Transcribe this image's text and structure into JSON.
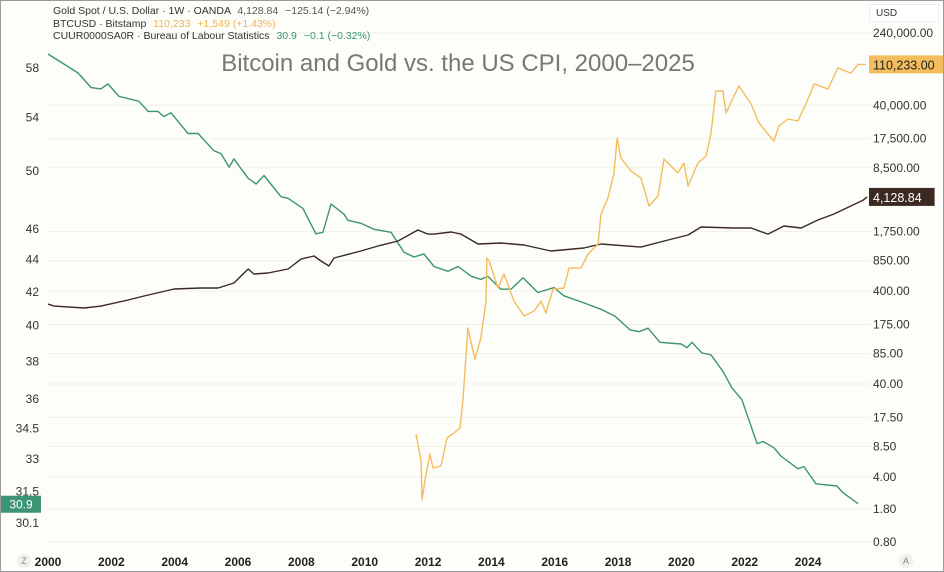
{
  "legend": {
    "gold": {
      "name": "Gold Spot / U.S. Dollar · 1W · OANDA",
      "value": "4,128.84",
      "change": "−125.14 (−2.94%)"
    },
    "btc": {
      "name": "BTCUSD · Bitstamp",
      "value": "110,233",
      "change": "+1,549 (+1.43%)"
    },
    "cpi": {
      "name": "CUUR0000SA0R · Bureau of Labour Statistics",
      "value": "30.9",
      "change": "−0.1 (−0.32%)"
    }
  },
  "currency_label": "USD",
  "corner_left": "Z",
  "corner_right": "A",
  "chart_data": {
    "type": "line",
    "title": "Bitcoin and Gold vs. the US CPI, 2000–2025",
    "x_ticks": [
      "2000",
      "2002",
      "2004",
      "2006",
      "2008",
      "2010",
      "2012",
      "2014",
      "2016",
      "2018",
      "2020",
      "2022",
      "2024"
    ],
    "xlim": [
      2000,
      2025.9
    ],
    "left_axis": {
      "scale": "log",
      "ticks": [
        "58",
        "54",
        "50",
        "46",
        "44",
        "42",
        "40",
        "38",
        "36",
        "34.5",
        "33",
        "31.5",
        "30.1"
      ],
      "range": [
        30.1,
        58
      ]
    },
    "right_axis": {
      "scale": "log",
      "unit": "USD",
      "ticks": [
        "240,000.00",
        "40,000.00",
        "17,500.00",
        "8,500.00",
        "1,750.00",
        "850.00",
        "400.00",
        "175.00",
        "85.00",
        "40.00",
        "17.50",
        "8.50",
        "4.00",
        "1.80",
        "0.80"
      ],
      "range": [
        0.8,
        240000
      ]
    },
    "grid": true,
    "series": [
      {
        "name": "CUUR0000SA0R",
        "axis": "left",
        "color": "#3c9474",
        "last_label": "30.9",
        "points": [
          [
            2000.0,
            59.1
          ],
          [
            2000.95,
            57.5
          ],
          [
            2001.36,
            56.3
          ],
          [
            2001.67,
            56.2
          ],
          [
            2001.89,
            56.6
          ],
          [
            2002.24,
            55.6
          ],
          [
            2002.87,
            55.2
          ],
          [
            2003.16,
            54.4
          ],
          [
            2003.47,
            54.4
          ],
          [
            2003.66,
            54.0
          ],
          [
            2003.88,
            54.3
          ],
          [
            2004.42,
            52.7
          ],
          [
            2004.74,
            52.7
          ],
          [
            2005.24,
            51.4
          ],
          [
            2005.46,
            51.2
          ],
          [
            2005.72,
            50.2
          ],
          [
            2005.87,
            50.8
          ],
          [
            2006.32,
            49.4
          ],
          [
            2006.57,
            49.0
          ],
          [
            2006.82,
            49.6
          ],
          [
            2007.36,
            48.1
          ],
          [
            2007.58,
            48.0
          ],
          [
            2008.05,
            47.3
          ],
          [
            2008.46,
            45.6
          ],
          [
            2008.68,
            45.7
          ],
          [
            2008.94,
            47.6
          ],
          [
            2009.35,
            46.9
          ],
          [
            2009.47,
            46.5
          ],
          [
            2009.88,
            46.3
          ],
          [
            2010.29,
            45.9
          ],
          [
            2010.83,
            45.7
          ],
          [
            2011.24,
            44.4
          ],
          [
            2011.56,
            44.1
          ],
          [
            2011.87,
            44.3
          ],
          [
            2012.19,
            43.5
          ],
          [
            2012.63,
            43.2
          ],
          [
            2012.95,
            43.5
          ],
          [
            2013.36,
            42.9
          ],
          [
            2013.67,
            42.7
          ],
          [
            2013.89,
            42.9
          ],
          [
            2014.3,
            42.1
          ],
          [
            2014.62,
            42.1
          ],
          [
            2015.0,
            42.8
          ],
          [
            2015.47,
            41.9
          ],
          [
            2015.98,
            42.2
          ],
          [
            2016.29,
            41.7
          ],
          [
            2016.89,
            41.3
          ],
          [
            2017.46,
            40.9
          ],
          [
            2017.9,
            40.5
          ],
          [
            2018.38,
            39.7
          ],
          [
            2018.66,
            39.6
          ],
          [
            2018.95,
            39.8
          ],
          [
            2019.32,
            39.0
          ],
          [
            2019.99,
            38.9
          ],
          [
            2020.18,
            38.7
          ],
          [
            2020.33,
            39.0
          ],
          [
            2020.65,
            38.4
          ],
          [
            2020.93,
            38.3
          ],
          [
            2021.31,
            37.4
          ],
          [
            2021.6,
            36.5
          ],
          [
            2021.91,
            35.9
          ],
          [
            2022.39,
            33.7
          ],
          [
            2022.58,
            33.8
          ],
          [
            2022.92,
            33.5
          ],
          [
            2023.14,
            33.1
          ],
          [
            2023.68,
            32.5
          ],
          [
            2023.87,
            32.6
          ],
          [
            2024.25,
            31.8
          ],
          [
            2024.91,
            31.7
          ],
          [
            2025.1,
            31.4
          ],
          [
            2025.58,
            30.9
          ]
        ]
      },
      {
        "name": "Gold Spot / U.S. Dollar",
        "axis": "right",
        "color": "#3a2a22",
        "last_label": "4,128.84",
        "points": [
          [
            2000.0,
            290
          ],
          [
            2000.19,
            276
          ],
          [
            2001.14,
            263
          ],
          [
            2001.67,
            276
          ],
          [
            2002.53,
            321
          ],
          [
            2003.03,
            354
          ],
          [
            2003.98,
            421
          ],
          [
            2004.83,
            432
          ],
          [
            2005.37,
            432
          ],
          [
            2005.87,
            489
          ],
          [
            2006.32,
            692
          ],
          [
            2006.5,
            611
          ],
          [
            2006.95,
            627
          ],
          [
            2007.58,
            692
          ],
          [
            2007.99,
            885
          ],
          [
            2008.4,
            955
          ],
          [
            2008.62,
            844
          ],
          [
            2008.87,
            745
          ],
          [
            2009.03,
            908
          ],
          [
            2009.88,
            1080
          ],
          [
            2010.42,
            1222
          ],
          [
            2011.05,
            1384
          ],
          [
            2011.68,
            1816
          ],
          [
            2012.0,
            1644
          ],
          [
            2012.19,
            1644
          ],
          [
            2012.73,
            1730
          ],
          [
            2013.04,
            1644
          ],
          [
            2013.58,
            1285
          ],
          [
            2014.3,
            1318
          ],
          [
            2015.03,
            1254
          ],
          [
            2015.88,
            1080
          ],
          [
            2016.92,
            1164
          ],
          [
            2017.46,
            1285
          ],
          [
            2018.72,
            1191
          ],
          [
            2019.58,
            1419
          ],
          [
            2020.21,
            1607
          ],
          [
            2020.62,
            1959
          ],
          [
            2021.66,
            1910
          ],
          [
            2022.2,
            1910
          ],
          [
            2022.73,
            1644
          ],
          [
            2023.24,
            2010
          ],
          [
            2023.78,
            1910
          ],
          [
            2024.31,
            2329
          ],
          [
            2024.82,
            2704
          ],
          [
            2025.35,
            3296
          ],
          [
            2025.73,
            3800
          ],
          [
            2025.86,
            4128.84
          ]
        ]
      },
      {
        "name": "BTCUSD",
        "axis": "right",
        "color": "#f3bd5e",
        "last_label": "110,233.00",
        "points": [
          [
            2011.62,
            11.6
          ],
          [
            2011.78,
            5.93
          ],
          [
            2011.81,
            2.26
          ],
          [
            2011.9,
            3.61
          ],
          [
            2012.06,
            7.05
          ],
          [
            2012.16,
            4.99
          ],
          [
            2012.41,
            5.24
          ],
          [
            2012.6,
            10.5
          ],
          [
            2012.82,
            11.9
          ],
          [
            2013.01,
            13.4
          ],
          [
            2013.1,
            26.3
          ],
          [
            2013.26,
            160
          ],
          [
            2013.48,
            74
          ],
          [
            2013.67,
            125
          ],
          [
            2013.83,
            313
          ],
          [
            2013.86,
            908
          ],
          [
            2013.93,
            844
          ],
          [
            2014.21,
            432
          ],
          [
            2014.4,
            611
          ],
          [
            2014.71,
            313
          ],
          [
            2015.03,
            216
          ],
          [
            2015.35,
            244
          ],
          [
            2015.57,
            313
          ],
          [
            2015.72,
            232
          ],
          [
            2015.95,
            421
          ],
          [
            2016.29,
            432
          ],
          [
            2016.45,
            708
          ],
          [
            2016.83,
            708
          ],
          [
            2017.05,
            1003
          ],
          [
            2017.37,
            1285
          ],
          [
            2017.46,
            2704
          ],
          [
            2017.68,
            4018
          ],
          [
            2017.87,
            7278
          ],
          [
            2017.97,
            17780
          ],
          [
            2018.09,
            10815
          ],
          [
            2018.41,
            7852
          ],
          [
            2018.72,
            6592
          ],
          [
            2018.98,
            3296
          ],
          [
            2019.26,
            4217
          ],
          [
            2019.45,
            10568
          ],
          [
            2019.89,
            7464
          ],
          [
            2020.08,
            9572
          ],
          [
            2020.21,
            5410
          ],
          [
            2020.52,
            9572
          ],
          [
            2020.78,
            11376
          ],
          [
            2020.93,
            19640
          ],
          [
            2021.09,
            57000
          ],
          [
            2021.31,
            57000
          ],
          [
            2021.41,
            33050
          ],
          [
            2021.66,
            50350
          ],
          [
            2021.82,
            64450
          ],
          [
            2022.2,
            41300
          ],
          [
            2022.45,
            25760
          ],
          [
            2022.73,
            19640
          ],
          [
            2022.92,
            16490
          ],
          [
            2023.08,
            23950
          ],
          [
            2023.37,
            28460
          ],
          [
            2023.68,
            27100
          ],
          [
            2023.93,
            41300
          ],
          [
            2024.19,
            67800
          ],
          [
            2024.63,
            59850
          ],
          [
            2024.94,
            100700
          ],
          [
            2025.35,
            88900
          ],
          [
            2025.58,
            110233
          ],
          [
            2025.83,
            110233
          ]
        ]
      }
    ]
  }
}
